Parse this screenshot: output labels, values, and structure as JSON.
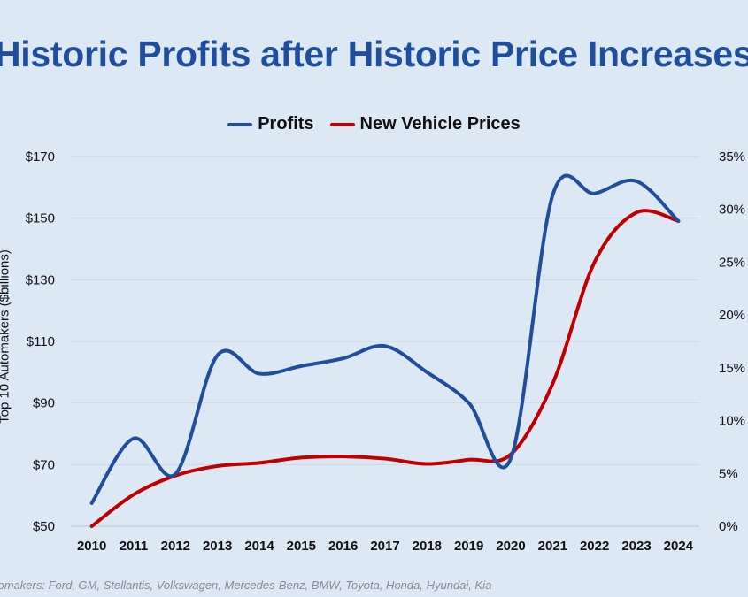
{
  "chart_data": {
    "type": "line",
    "title": "Historic Profits after Historic Price Increases",
    "ylabel": "Top 10 Automakers ($billions)",
    "categories": [
      "2010",
      "2011",
      "2012",
      "2013",
      "2014",
      "2015",
      "2016",
      "2017",
      "2018",
      "2019",
      "2020",
      "2021",
      "2022",
      "2023",
      "2024"
    ],
    "y_left": {
      "ylim": [
        50,
        170
      ],
      "ticks": [
        "$50",
        "$70",
        "$90",
        "$110",
        "$130",
        "$150",
        "$170"
      ],
      "tick_values": [
        50,
        70,
        90,
        110,
        130,
        150,
        170
      ]
    },
    "y_right": {
      "ylim": [
        0,
        35
      ],
      "ticks": [
        "0%",
        "5%",
        "10%",
        "15%",
        "20%",
        "25%",
        "30%",
        "35%"
      ],
      "tick_values": [
        0,
        5,
        10,
        15,
        20,
        25,
        30,
        35
      ]
    },
    "series": [
      {
        "name": "Profits",
        "color": "#1f4e9c",
        "axis": "left",
        "values": [
          57.5,
          78.5,
          67,
          105.5,
          99.5,
          102,
          104.5,
          108.5,
          100,
          90,
          72,
          157.5,
          158,
          162,
          149
        ]
      },
      {
        "name": "New Vehicle Prices",
        "color": "#c00000",
        "axis": "right",
        "values": [
          0,
          3,
          4.8,
          5.7,
          6,
          6.5,
          6.6,
          6.4,
          5.9,
          6.3,
          6.8,
          13.5,
          25,
          29.7,
          28.9
        ]
      }
    ],
    "grid": true,
    "legend": "top"
  },
  "footnote": "Automakers: Ford, GM, Stellantis, Volkswagen, Mercedes-Benz, BMW, Toyota, Honda, Hyundai, Kia"
}
